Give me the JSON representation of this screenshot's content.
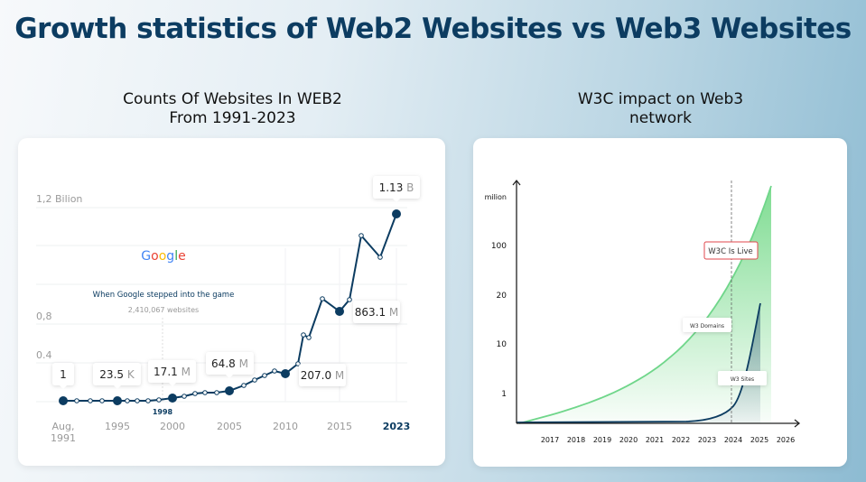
{
  "title": "Growth statistics of Web2 Websites vs Web3 Websites",
  "chart_data": [
    {
      "type": "line",
      "title": "Counts Of Websites In WEB2\nFrom 1991-2023",
      "title_lines": [
        "Counts Of Websites In WEB2",
        "From 1991-2023"
      ],
      "y_tick_labels": [
        "1,2 Bilion",
        "0,8",
        "0.4"
      ],
      "x_tick_labels": [
        "Aug,\n1991",
        "1995",
        "2000",
        "2005",
        "2010",
        "2015",
        "2023"
      ],
      "x_tick_lines": [
        [
          "Aug,",
          "1991"
        ],
        [
          "1995"
        ],
        [
          "2000"
        ],
        [
          "2005"
        ],
        [
          "2010"
        ],
        [
          "2015"
        ],
        [
          "2023"
        ]
      ],
      "points": [
        {
          "x": "Aug, 1991",
          "num": "1",
          "unit": ""
        },
        {
          "x": "1995",
          "num": "23.5",
          "unit": "K"
        },
        {
          "x": "2000",
          "num": "17.1",
          "unit": "M"
        },
        {
          "x": "2005",
          "num": "64.8",
          "unit": "M"
        },
        {
          "x": "2010",
          "num": "207.0",
          "unit": "M"
        },
        {
          "x": "2015",
          "num": "863.1",
          "unit": "M"
        },
        {
          "x": "2023",
          "num": "1.13",
          "unit": "B"
        }
      ],
      "annotation": {
        "logo": "Google",
        "text": "When Google stepped into the game",
        "sub": "2,410,067 websites",
        "year": "1998"
      },
      "line_color": "#0c3c61"
    },
    {
      "type": "area",
      "title_lines": [
        "W3C impact on Web3",
        "network"
      ],
      "ylabel": "milion",
      "y_tick_labels": [
        "100",
        "20",
        "10",
        "1"
      ],
      "x_tick_labels": [
        "2017",
        "2018",
        "2019",
        "2020",
        "2021",
        "2022",
        "2023",
        "2024",
        "2025",
        "2026"
      ],
      "series": [
        {
          "name": "W3 Domains",
          "color": "#6fd68a"
        },
        {
          "name": "W3 Sites",
          "color": "#0c3c61"
        }
      ],
      "marker": {
        "x": "2024",
        "label": "W3C Is Live",
        "color": "#e0474c"
      }
    }
  ]
}
